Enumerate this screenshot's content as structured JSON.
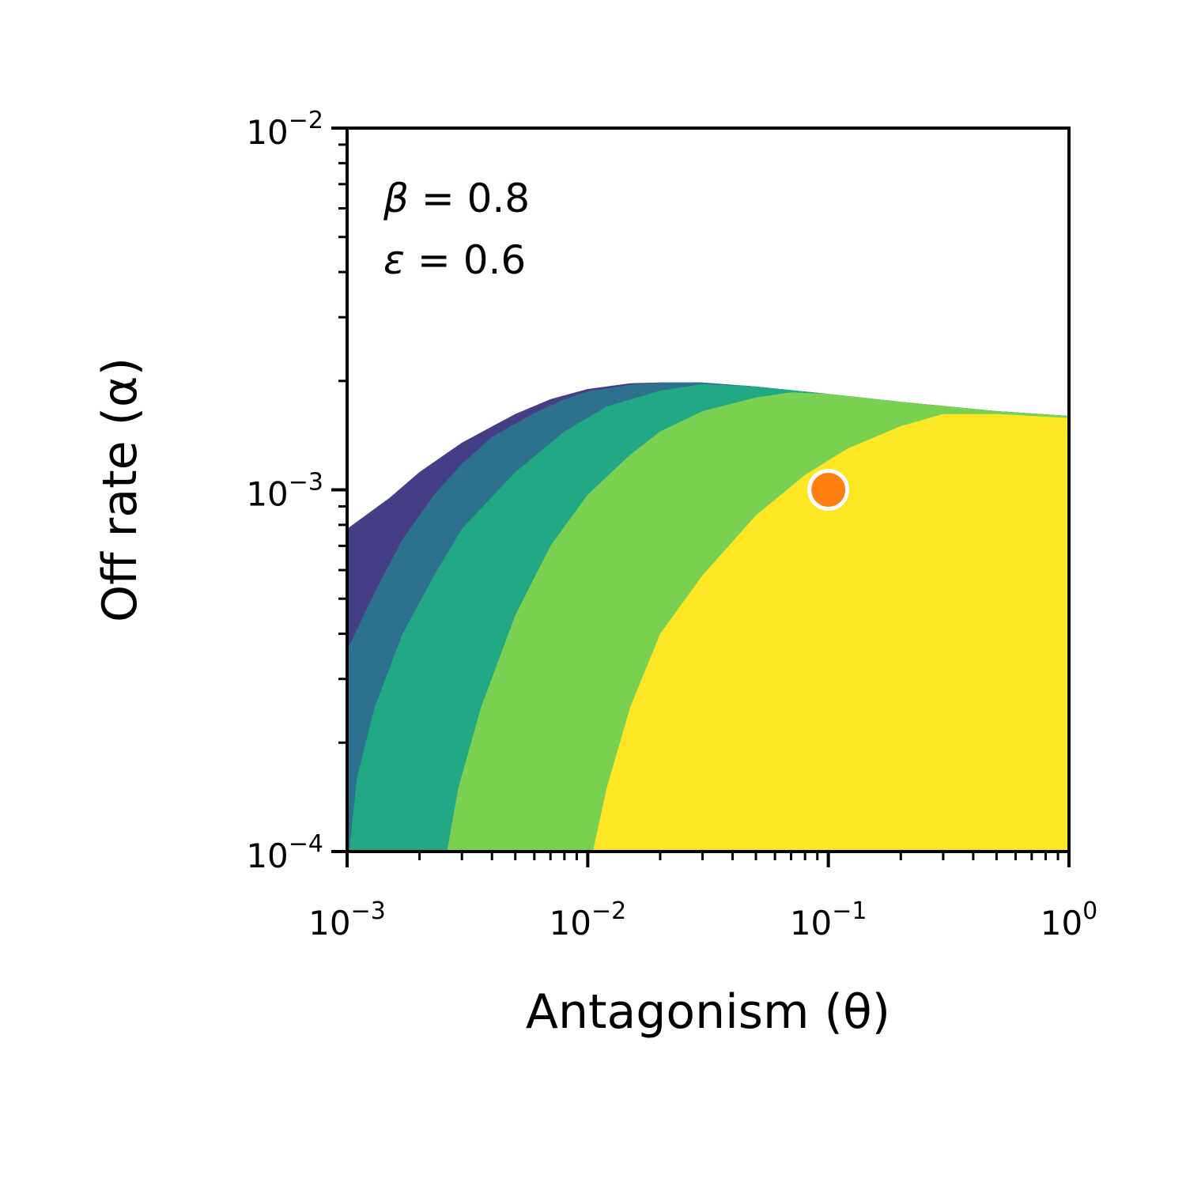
{
  "chart_data": {
    "type": "area",
    "xlabel": "Antagonism (θ)",
    "ylabel": "Off rate (α)",
    "xscale": "log",
    "yscale": "log",
    "xlim": [
      0.001,
      1
    ],
    "ylim": [
      0.0001,
      0.01
    ],
    "x_ticks": [
      {
        "base": "10",
        "exp": "−3"
      },
      {
        "base": "10",
        "exp": "−2"
      },
      {
        "base": "10",
        "exp": "−1"
      },
      {
        "base": "10",
        "exp": "0"
      }
    ],
    "y_ticks": [
      {
        "base": "10",
        "exp": "−4"
      },
      {
        "base": "10",
        "exp": "−3"
      },
      {
        "base": "10",
        "exp": "−2"
      }
    ],
    "annotations": [
      {
        "symbol": "β",
        "text": " = 0.8"
      },
      {
        "symbol": "ε",
        "text": " = 0.6"
      }
    ],
    "regions": [
      {
        "color": "#433e85",
        "boundary": [
          [
            0.001,
            0.0001
          ],
          [
            0.001,
            0.00078
          ],
          [
            0.0015,
            0.00095
          ],
          [
            0.002,
            0.00112
          ],
          [
            0.003,
            0.00135
          ],
          [
            0.005,
            0.00162
          ],
          [
            0.007,
            0.00178
          ],
          [
            0.01,
            0.0019
          ],
          [
            0.015,
            0.00197
          ],
          [
            0.02,
            0.00198
          ],
          [
            0.03,
            0.00198
          ],
          [
            0.05,
            0.00193
          ],
          [
            0.1,
            0.00184
          ],
          [
            0.2,
            0.00175
          ],
          [
            0.5,
            0.00165
          ],
          [
            1,
            0.0016
          ],
          [
            1,
            0.0001
          ]
        ]
      },
      {
        "color": "#2c728e",
        "boundary": [
          [
            0.001,
            0.0001
          ],
          [
            0.001,
            0.00036
          ],
          [
            0.0013,
            0.00052
          ],
          [
            0.0017,
            0.00073
          ],
          [
            0.0023,
            0.00097
          ],
          [
            0.003,
            0.00118
          ],
          [
            0.004,
            0.0014
          ],
          [
            0.006,
            0.00163
          ],
          [
            0.008,
            0.00178
          ],
          [
            0.01,
            0.00187
          ],
          [
            0.015,
            0.00195
          ],
          [
            0.02,
            0.00198
          ],
          [
            0.03,
            0.00198
          ],
          [
            0.05,
            0.00193
          ],
          [
            0.1,
            0.00184
          ],
          [
            0.2,
            0.00175
          ],
          [
            0.5,
            0.00165
          ],
          [
            1,
            0.0016
          ],
          [
            1,
            0.0001
          ]
        ]
      },
      {
        "color": "#22a884",
        "boundary": [
          [
            0.00102,
            0.0001
          ],
          [
            0.0011,
            0.00016
          ],
          [
            0.0013,
            0.00025
          ],
          [
            0.0017,
            0.0004
          ],
          [
            0.0023,
            0.00058
          ],
          [
            0.003,
            0.00078
          ],
          [
            0.005,
            0.00112
          ],
          [
            0.008,
            0.00145
          ],
          [
            0.012,
            0.0017
          ],
          [
            0.02,
            0.00188
          ],
          [
            0.03,
            0.00196
          ],
          [
            0.05,
            0.00193
          ],
          [
            0.1,
            0.00184
          ],
          [
            0.2,
            0.00175
          ],
          [
            0.5,
            0.00165
          ],
          [
            1,
            0.0016
          ],
          [
            1,
            0.0001
          ]
        ]
      },
      {
        "color": "#7ad151",
        "boundary": [
          [
            0.0026,
            0.0001
          ],
          [
            0.0029,
            0.00015
          ],
          [
            0.0036,
            0.00025
          ],
          [
            0.005,
            0.00045
          ],
          [
            0.007,
            0.0007
          ],
          [
            0.01,
            0.00097
          ],
          [
            0.015,
            0.00125
          ],
          [
            0.02,
            0.00145
          ],
          [
            0.03,
            0.00165
          ],
          [
            0.05,
            0.0018
          ],
          [
            0.07,
            0.00186
          ],
          [
            0.1,
            0.00184
          ],
          [
            0.2,
            0.00175
          ],
          [
            0.5,
            0.00165
          ],
          [
            1,
            0.0016
          ],
          [
            1,
            0.0001
          ]
        ]
      },
      {
        "color": "#fde725",
        "boundary": [
          [
            0.0105,
            0.0001
          ],
          [
            0.012,
            0.00015
          ],
          [
            0.015,
            0.00025
          ],
          [
            0.02,
            0.0004
          ],
          [
            0.03,
            0.00058
          ],
          [
            0.05,
            0.00085
          ],
          [
            0.08,
            0.0011
          ],
          [
            0.12,
            0.0013
          ],
          [
            0.2,
            0.0015
          ],
          [
            0.3,
            0.00162
          ],
          [
            0.5,
            0.00162
          ],
          [
            1,
            0.00158
          ],
          [
            1,
            0.0001
          ]
        ]
      }
    ],
    "marker": {
      "x": 0.1,
      "y": 0.001,
      "fill": "#ff7f0e",
      "edge": "#ffffff"
    }
  }
}
